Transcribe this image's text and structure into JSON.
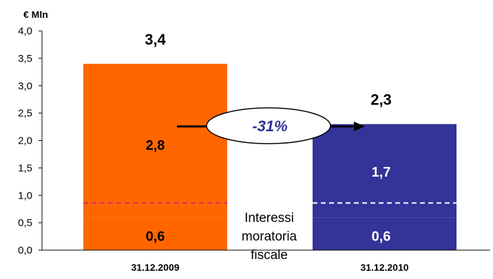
{
  "chart_data": {
    "type": "bar",
    "unit_label": "€ Mln",
    "ylim": [
      0,
      4.0
    ],
    "y_ticks": [
      "0,0",
      "0,5",
      "1,0",
      "1,5",
      "2,0",
      "2,5",
      "3,0",
      "3,5",
      "4,0"
    ],
    "y_tick_values": [
      0,
      0.5,
      1.0,
      1.5,
      2.0,
      2.5,
      3.0,
      3.5,
      4.0
    ],
    "categories": [
      "31.12.2009",
      "31.12.2010"
    ],
    "series": [
      {
        "name": "Interessi moratoria fiscale",
        "values": [
          0.6,
          0.6
        ]
      },
      {
        "values": [
          2.8,
          1.7
        ]
      }
    ],
    "totals": [
      3.4,
      2.3
    ],
    "total_labels": [
      "3,4",
      "2,3"
    ],
    "segment_labels": {
      "lower": [
        "0,6",
        "0,6"
      ],
      "upper": [
        "2,8",
        "1,7"
      ]
    },
    "bar_colors": [
      "#ff6600",
      "#333399"
    ],
    "divider_colors": [
      "#cc3366",
      "#ffffff"
    ],
    "change_label": "-31%",
    "annotation_lines": [
      "Interessi",
      "moratoria",
      "fiscale"
    ],
    "grid": false,
    "legend": "none"
  }
}
